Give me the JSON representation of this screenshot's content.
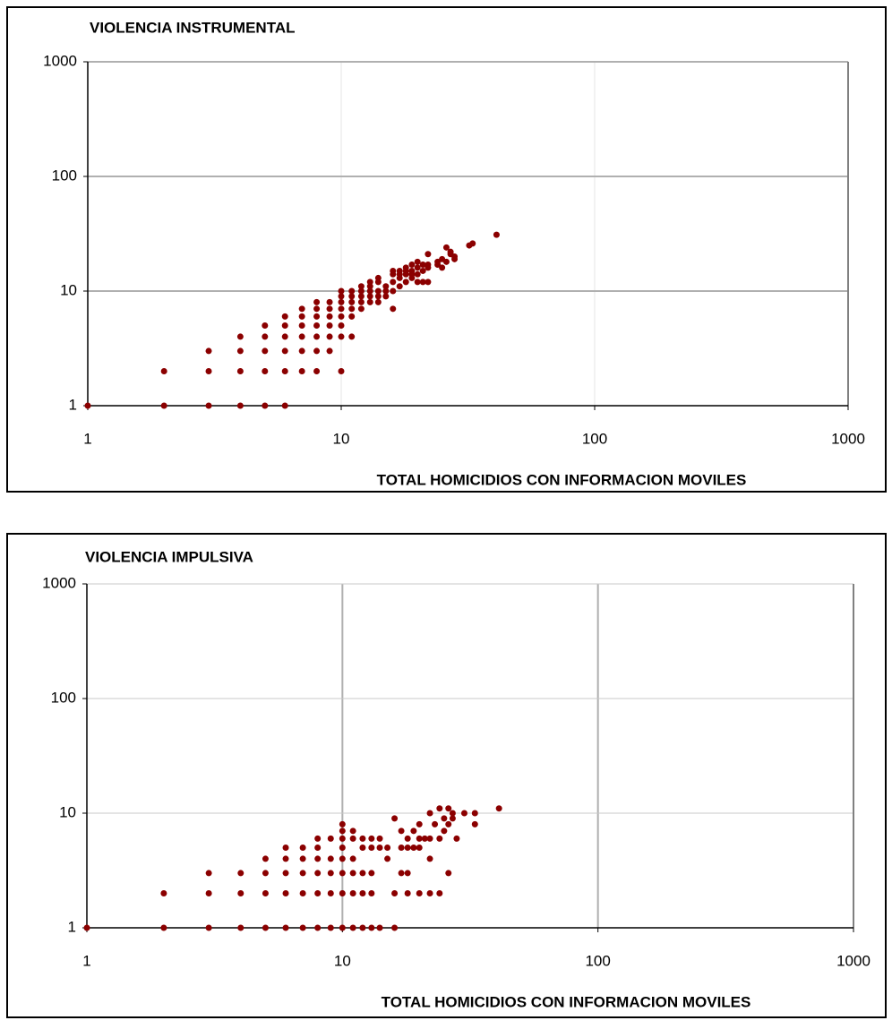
{
  "chart_data": [
    {
      "type": "scatter",
      "title": "VIOLENCIA INSTRUMENTAL",
      "xlabel": "TOTAL HOMICIDIOS CON INFORMACION MOVILES",
      "xscale": "log",
      "yscale": "log",
      "xlim": [
        1,
        1000
      ],
      "ylim": [
        1,
        1000
      ],
      "xticks": [
        1,
        10,
        100,
        1000
      ],
      "yticks": [
        1,
        10,
        100,
        1000
      ],
      "grid": true,
      "series": [
        {
          "color": "#8b0000",
          "x": [
            1,
            2,
            2,
            3,
            3,
            3,
            4,
            4,
            4,
            4,
            5,
            5,
            5,
            5,
            5,
            6,
            6,
            6,
            6,
            6,
            6,
            7,
            7,
            7,
            7,
            7,
            7,
            8,
            8,
            8,
            8,
            8,
            8,
            8,
            9,
            9,
            9,
            9,
            9,
            9,
            10,
            10,
            10,
            10,
            10,
            10,
            10,
            10,
            11,
            11,
            11,
            11,
            11,
            11,
            12,
            12,
            12,
            12,
            12,
            13,
            13,
            13,
            13,
            13,
            14,
            14,
            14,
            14,
            14,
            15,
            15,
            15,
            16,
            16,
            16,
            16,
            16,
            17,
            17,
            17,
            17,
            18,
            18,
            18,
            18,
            19,
            19,
            19,
            19,
            20,
            20,
            20,
            20,
            21,
            21,
            21,
            22,
            22,
            22,
            22,
            24,
            24,
            25,
            25,
            26,
            26,
            27,
            27,
            28,
            28,
            32,
            33,
            41
          ],
          "y": [
            1,
            1,
            2,
            1,
            2,
            3,
            1,
            2,
            3,
            4,
            1,
            2,
            3,
            4,
            5,
            1,
            2,
            3,
            4,
            5,
            6,
            2,
            3,
            4,
            5,
            6,
            7,
            2,
            3,
            4,
            5,
            6,
            7,
            8,
            3,
            4,
            5,
            6,
            7,
            8,
            2,
            4,
            5,
            6,
            7,
            8,
            9,
            10,
            4,
            6,
            7,
            8,
            9,
            10,
            7,
            8,
            9,
            10,
            11,
            8,
            9,
            10,
            11,
            12,
            8,
            9,
            10,
            12,
            13,
            9,
            10,
            11,
            7,
            10,
            12,
            14,
            15,
            11,
            13,
            14,
            15,
            12,
            14,
            15,
            16,
            13,
            14,
            15,
            17,
            12,
            14,
            16,
            18,
            12,
            15,
            17,
            12,
            16,
            17,
            21,
            17,
            18,
            16,
            19,
            18,
            24,
            21,
            22,
            19,
            20,
            25,
            26,
            31
          ]
        }
      ]
    },
    {
      "type": "scatter",
      "title": "VIOLENCIA IMPULSIVA",
      "xlabel": "TOTAL HOMICIDIOS CON INFORMACION MOVILES",
      "xscale": "log",
      "yscale": "log",
      "xlim": [
        1,
        1000
      ],
      "ylim": [
        1,
        1000
      ],
      "xticks": [
        1,
        10,
        100,
        1000
      ],
      "yticks": [
        1,
        10,
        100,
        1000
      ],
      "grid": true,
      "series": [
        {
          "color": "#8b0000",
          "x": [
            1,
            2,
            2,
            3,
            3,
            3,
            4,
            4,
            4,
            5,
            5,
            5,
            5,
            6,
            6,
            6,
            6,
            6,
            7,
            7,
            7,
            7,
            7,
            8,
            8,
            8,
            8,
            8,
            8,
            9,
            9,
            9,
            9,
            9,
            10,
            10,
            10,
            10,
            10,
            10,
            10,
            10,
            11,
            11,
            11,
            11,
            11,
            11,
            12,
            12,
            12,
            12,
            12,
            13,
            13,
            13,
            13,
            13,
            14,
            14,
            14,
            15,
            15,
            16,
            16,
            16,
            17,
            17,
            17,
            18,
            18,
            18,
            18,
            19,
            19,
            20,
            20,
            20,
            20,
            21,
            22,
            22,
            22,
            22,
            23,
            24,
            24,
            24,
            25,
            25,
            26,
            26,
            26,
            27,
            27,
            28,
            30,
            33,
            33,
            41
          ],
          "y": [
            1,
            1,
            2,
            1,
            2,
            3,
            1,
            2,
            3,
            1,
            2,
            3,
            4,
            1,
            2,
            3,
            4,
            5,
            1,
            2,
            3,
            4,
            5,
            1,
            2,
            3,
            4,
            5,
            6,
            1,
            2,
            3,
            4,
            6,
            1,
            2,
            3,
            4,
            5,
            6,
            7,
            8,
            1,
            2,
            3,
            4,
            6,
            7,
            1,
            2,
            3,
            5,
            6,
            1,
            2,
            3,
            5,
            6,
            1,
            5,
            6,
            4,
            5,
            1,
            2,
            9,
            3,
            5,
            7,
            2,
            3,
            5,
            6,
            5,
            7,
            2,
            5,
            6,
            8,
            6,
            2,
            4,
            6,
            10,
            8,
            2,
            6,
            11,
            7,
            9,
            3,
            8,
            11,
            9,
            10,
            6,
            10,
            8,
            10,
            11
          ]
        }
      ]
    }
  ]
}
